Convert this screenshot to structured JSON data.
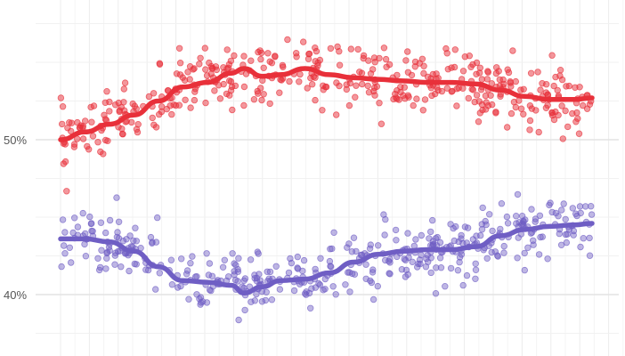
{
  "chart_data": {
    "type": "scatter",
    "title": "",
    "xlabel": "",
    "ylabel": "",
    "ylim": [
      36,
      59
    ],
    "y_ticks": [
      {
        "value": 40,
        "label": "40%"
      },
      {
        "value": 50,
        "label": "50%"
      }
    ],
    "x_gridlines": 20,
    "grid": true,
    "legend": "none",
    "series": [
      {
        "color": "#e8303a",
        "points_level_start": 50.0,
        "trend": [
          [
            0,
            50.0
          ],
          [
            4,
            50.5
          ],
          [
            8,
            51.0
          ],
          [
            12,
            51.6
          ],
          [
            16,
            52.5
          ],
          [
            20,
            53.4
          ],
          [
            24,
            53.7
          ],
          [
            28,
            54.3
          ],
          [
            30,
            54.6
          ],
          [
            33,
            54.1
          ],
          [
            36,
            54.2
          ],
          [
            40,
            54.6
          ],
          [
            44,
            54.2
          ],
          [
            48,
            54.0
          ],
          [
            52,
            53.9
          ],
          [
            56,
            53.8
          ],
          [
            60,
            53.7
          ],
          [
            64,
            53.7
          ],
          [
            68,
            53.6
          ],
          [
            72,
            53.2
          ],
          [
            76,
            52.8
          ],
          [
            80,
            52.6
          ],
          [
            84,
            52.6
          ],
          [
            87,
            52.7
          ]
        ]
      },
      {
        "color": "#6f5ec4",
        "trend": [
          [
            0,
            43.6
          ],
          [
            4,
            43.6
          ],
          [
            8,
            43.4
          ],
          [
            12,
            42.8
          ],
          [
            16,
            41.8
          ],
          [
            20,
            40.9
          ],
          [
            24,
            40.8
          ],
          [
            28,
            40.6
          ],
          [
            30,
            40.1
          ],
          [
            33,
            40.5
          ],
          [
            36,
            40.9
          ],
          [
            40,
            41.0
          ],
          [
            44,
            41.4
          ],
          [
            48,
            42.1
          ],
          [
            52,
            42.6
          ],
          [
            56,
            42.8
          ],
          [
            60,
            42.9
          ],
          [
            64,
            42.9
          ],
          [
            68,
            43.1
          ],
          [
            72,
            43.8
          ],
          [
            76,
            44.2
          ],
          [
            80,
            44.4
          ],
          [
            84,
            44.5
          ],
          [
            87,
            44.6
          ]
        ]
      }
    ],
    "x_range": [
      0,
      87
    ],
    "scatter_points_per_series": 450,
    "scatter_spread": 1.8
  }
}
